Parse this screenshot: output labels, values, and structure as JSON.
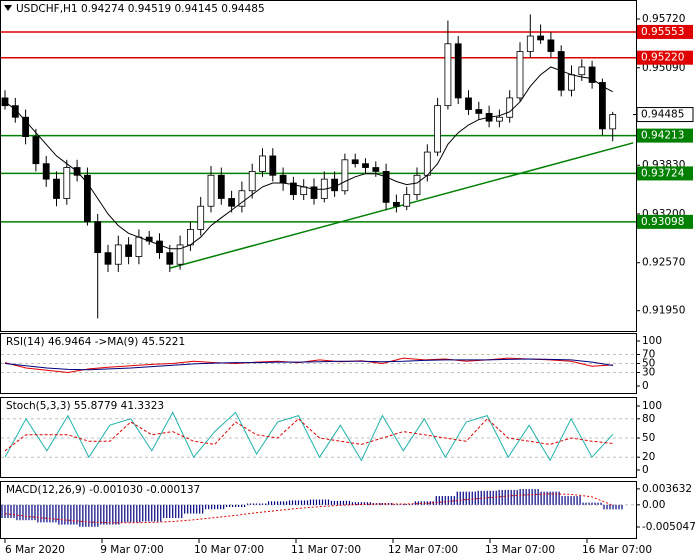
{
  "chart_data": [
    {
      "type": "candlestick",
      "title": "USDCHF,H1  0.94274 0.94519 0.94145 0.94485",
      "ylim": [
        0.917,
        0.9594
      ],
      "yticks": [
        {
          "value": 0.9572,
          "label": "0.95720"
        },
        {
          "value": 0.9509,
          "label": "0.95090"
        },
        {
          "value": 0.9383,
          "label": "0.93830"
        },
        {
          "value": 0.932,
          "label": "0.93200"
        },
        {
          "value": 0.9257,
          "label": "0.92570"
        },
        {
          "value": 0.9195,
          "label": "0.91950"
        }
      ],
      "x_labels": [
        "6 Mar 2020",
        "9 Mar 07:00",
        "10 Mar 07:00",
        "11 Mar 07:00",
        "12 Mar 07:00",
        "13 Mar 07:00",
        "16 Mar 07:00"
      ],
      "open": [
        0.947,
        0.946,
        0.9445,
        0.942,
        0.9385,
        0.9365,
        0.934,
        0.938,
        0.937,
        0.931,
        0.927,
        0.9255,
        0.928,
        0.9265,
        0.929,
        0.9285,
        0.927,
        0.9255,
        0.928,
        0.93,
        0.933,
        0.937,
        0.934,
        0.933,
        0.935,
        0.9375,
        0.9395,
        0.937,
        0.936,
        0.9345,
        0.9355,
        0.934,
        0.9365,
        0.935,
        0.939,
        0.9385,
        0.938,
        0.9375,
        0.9335,
        0.933,
        0.9345,
        0.937,
        0.94,
        0.946,
        0.954,
        0.947,
        0.9455,
        0.945,
        0.944,
        0.9445,
        0.947,
        0.953,
        0.955,
        0.9545,
        0.953,
        0.948,
        0.95,
        0.951,
        0.949,
        0.943
      ],
      "high": [
        0.948,
        0.947,
        0.9455,
        0.943,
        0.9395,
        0.9375,
        0.939,
        0.939,
        0.938,
        0.932,
        0.928,
        0.9292,
        0.929,
        0.93,
        0.9298,
        0.9295,
        0.928,
        0.9292,
        0.931,
        0.9342,
        0.9382,
        0.938,
        0.935,
        0.9362,
        0.9385,
        0.9405,
        0.9405,
        0.938,
        0.9368,
        0.9365,
        0.9366,
        0.9375,
        0.9375,
        0.9398,
        0.9398,
        0.9392,
        0.9388,
        0.9385,
        0.9345,
        0.9355,
        0.938,
        0.941,
        0.947,
        0.957,
        0.955,
        0.948,
        0.9465,
        0.946,
        0.9455,
        0.948,
        0.9542,
        0.9578,
        0.9565,
        0.9555,
        0.9538,
        0.9512,
        0.952,
        0.9518,
        0.9495,
        0.9452
      ],
      "low": [
        0.9455,
        0.9438,
        0.941,
        0.9375,
        0.9355,
        0.933,
        0.9332,
        0.9362,
        0.9305,
        0.9185,
        0.9245,
        0.9245,
        0.9255,
        0.9255,
        0.928,
        0.9262,
        0.9245,
        0.9248,
        0.9272,
        0.9292,
        0.9322,
        0.9332,
        0.9322,
        0.9322,
        0.934,
        0.9368,
        0.9362,
        0.935,
        0.9338,
        0.9338,
        0.9332,
        0.9335,
        0.9342,
        0.9345,
        0.938,
        0.9372,
        0.9368,
        0.9325,
        0.9322,
        0.9325,
        0.9338,
        0.9362,
        0.9395,
        0.9455,
        0.9462,
        0.9448,
        0.9442,
        0.9432,
        0.9432,
        0.9438,
        0.9465,
        0.9522,
        0.954,
        0.9522,
        0.9472,
        0.9472,
        0.9492,
        0.9482,
        0.9422,
        0.9414
      ],
      "close": [
        0.946,
        0.9445,
        0.942,
        0.9385,
        0.9365,
        0.934,
        0.938,
        0.937,
        0.931,
        0.927,
        0.9255,
        0.928,
        0.9265,
        0.929,
        0.9285,
        0.927,
        0.9255,
        0.928,
        0.93,
        0.933,
        0.937,
        0.934,
        0.933,
        0.935,
        0.9375,
        0.9395,
        0.937,
        0.936,
        0.9345,
        0.9355,
        0.934,
        0.9365,
        0.935,
        0.939,
        0.9385,
        0.938,
        0.9375,
        0.9335,
        0.933,
        0.9345,
        0.937,
        0.94,
        0.946,
        0.954,
        0.947,
        0.9455,
        0.945,
        0.944,
        0.9445,
        0.947,
        0.953,
        0.955,
        0.9545,
        0.953,
        0.948,
        0.95,
        0.951,
        0.949,
        0.943,
        0.94485
      ],
      "ma": {
        "color": "#000000",
        "values": [
          0.9465,
          0.9455,
          0.944,
          0.9425,
          0.941,
          0.9395,
          0.9385,
          0.9375,
          0.936,
          0.934,
          0.932,
          0.9305,
          0.9295,
          0.929,
          0.9285,
          0.928,
          0.9275,
          0.9275,
          0.928,
          0.929,
          0.9305,
          0.9315,
          0.9325,
          0.9335,
          0.9345,
          0.9355,
          0.936,
          0.936,
          0.9358,
          0.9355,
          0.9352,
          0.9352,
          0.9355,
          0.9362,
          0.9368,
          0.9372,
          0.9372,
          0.9368,
          0.9362,
          0.9358,
          0.936,
          0.937,
          0.9385,
          0.941,
          0.9425,
          0.9435,
          0.9442,
          0.9445,
          0.9447,
          0.9452,
          0.9465,
          0.9485,
          0.95,
          0.951,
          0.9505,
          0.95,
          0.9497,
          0.9495,
          0.9485,
          0.9478
        ]
      },
      "trendline": {
        "color": "#008000",
        "x": [
          16,
          61
        ],
        "y": [
          0.925,
          0.9412
        ]
      },
      "levels": [
        {
          "value": 0.95553,
          "color": "#e00000"
        },
        {
          "value": 0.9522,
          "label": "0.95220",
          "color": "#e00000"
        },
        {
          "value": 0.94213,
          "color": "#008000"
        },
        {
          "value": 0.93724,
          "color": "#008000"
        },
        {
          "value": 0.93098,
          "color": "#008000"
        }
      ],
      "current_price": 0.94485
    },
    {
      "type": "line",
      "title": "RSI(14) 46.9464 ->MA(9) 45.5221",
      "ylim": [
        0,
        100
      ],
      "yticks": [
        100,
        70,
        50,
        30,
        0
      ],
      "series": [
        {
          "color": "#e00000",
          "values": [
            52,
            40,
            35,
            30,
            38,
            42,
            45,
            48,
            50,
            55,
            52,
            50,
            53,
            55,
            52,
            58,
            54,
            56,
            50,
            62,
            58,
            60,
            55,
            58,
            62,
            60,
            58,
            55,
            44,
            46.9464
          ]
        },
        {
          "color": "#000080",
          "values": [
            50,
            45,
            40,
            37,
            36,
            38,
            40,
            43,
            46,
            49,
            51,
            52,
            52,
            53,
            53,
            54,
            55,
            55,
            54,
            55,
            57,
            58,
            58,
            58,
            59,
            60,
            59,
            58,
            53,
            45.5221
          ]
        }
      ]
    },
    {
      "type": "line",
      "title": "Stoch(5,3,3) 55.8779 41.3323",
      "ylim": [
        0,
        100
      ],
      "yticks": [
        100,
        80,
        50,
        20,
        0
      ],
      "series": [
        {
          "color": "#20b2aa",
          "values": [
            20,
            80,
            30,
            85,
            20,
            70,
            80,
            30,
            90,
            20,
            60,
            90,
            25,
            75,
            85,
            20,
            70,
            15,
            85,
            30,
            80,
            20,
            75,
            85,
            20,
            70,
            15,
            80,
            20,
            55.8779
          ]
        },
        {
          "color": "#e00000",
          "dash": true,
          "values": [
            30,
            55,
            55,
            55,
            45,
            45,
            75,
            55,
            60,
            45,
            40,
            75,
            55,
            50,
            80,
            50,
            45,
            40,
            50,
            60,
            55,
            50,
            45,
            80,
            50,
            45,
            40,
            50,
            45,
            41.3323
          ]
        }
      ]
    },
    {
      "type": "macd",
      "title": "MACD(12,26,9) -0.001030 -0.000137",
      "ylim": [
        -0.0071,
        0.0052
      ],
      "yticks": [
        0.003632,
        {
          "value": 0,
          "label": "0.00"
        },
        -0.005047
      ],
      "histogram": {
        "color": "#000080",
        "values": [
          -0.003,
          -0.0035,
          -0.004,
          -0.0045,
          -0.005,
          -0.0045,
          -0.004,
          -0.0038,
          -0.003,
          -0.002,
          -0.001,
          -0.0005,
          0.0003,
          0.0008,
          0.001,
          0.0012,
          0.0009,
          0.0006,
          0.0004,
          0.0002,
          0.0008,
          0.002,
          0.003,
          0.0032,
          0.0034,
          0.0036,
          0.003,
          0.002,
          0.0005,
          -0.00103
        ]
      },
      "signal": {
        "color": "#e00000",
        "values": [
          -0.002,
          -0.0026,
          -0.0031,
          -0.0035,
          -0.0039,
          -0.0041,
          -0.0041,
          -0.004,
          -0.0038,
          -0.0034,
          -0.0029,
          -0.0024,
          -0.0018,
          -0.0013,
          -0.0008,
          -0.0004,
          -0.0001,
          0.0001,
          0.0002,
          0.0002,
          0.0003,
          0.0007,
          0.0012,
          0.0016,
          0.002,
          0.0023,
          0.0025,
          0.0024,
          0.0018,
          -0.000137
        ]
      }
    }
  ]
}
